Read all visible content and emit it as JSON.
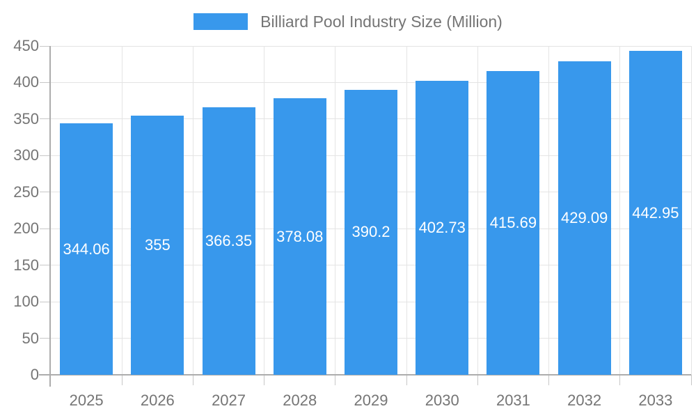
{
  "chart_data": {
    "type": "bar",
    "title": "Billiard Pool Industry Size (Million)",
    "legend": [
      "Billiard Pool Industry Size (Million)"
    ],
    "legend_position": "top-center",
    "categories": [
      "2025",
      "2026",
      "2027",
      "2028",
      "2029",
      "2030",
      "2031",
      "2032",
      "2033"
    ],
    "values": [
      344.06,
      355,
      366.35,
      378.08,
      390.2,
      402.73,
      415.69,
      429.09,
      442.95
    ],
    "value_labels": [
      "344.06",
      "355",
      "366.35",
      "378.08",
      "390.2",
      "402.73",
      "415.69",
      "429.09",
      "442.95"
    ],
    "xlabel": "",
    "ylabel": "",
    "ylim": [
      0,
      450
    ],
    "ytick_step": 50,
    "ytick_labels": [
      "0",
      "50",
      "100",
      "150",
      "200",
      "250",
      "300",
      "350",
      "400",
      "450"
    ],
    "grid": true,
    "value_labels_inside_bars": true
  },
  "colors": {
    "bar": "#3898EC",
    "grid_line": "#E4E4E4",
    "axis_line": "#ACACAC",
    "tick_line": "#C7C7C7",
    "label_text": "#757575",
    "bar_label_text": "#FFFFFF",
    "background": "#FFFFFF"
  }
}
